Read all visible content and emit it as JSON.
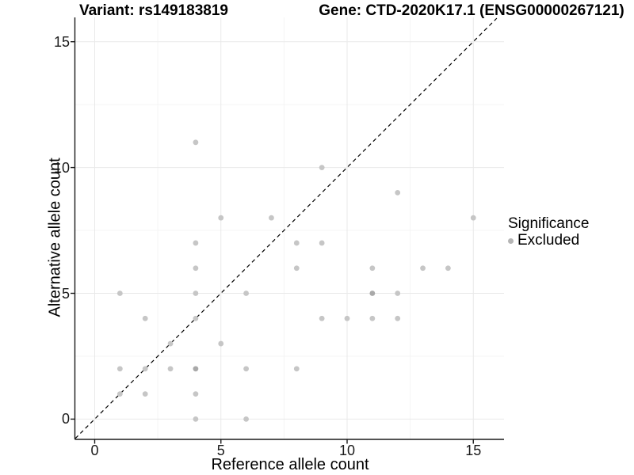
{
  "colors": {
    "point": "#c6c6c6",
    "point_overlap": "#a9a9a9",
    "legend_dot": "#b5b5b5",
    "gridline_major": "#e9e9e9",
    "gridline_minor": "#f4f4f4",
    "axis_line": "#1a1a1a",
    "identity_line": "#000000",
    "background": "#ffffff"
  },
  "chart_data": {
    "type": "scatter",
    "title_left": "Variant: rs149183819",
    "title_right": "Gene: CTD-2020K17.1 (ENSG00000267121)",
    "xlabel": "Reference allele count",
    "ylabel": "Alternative allele count",
    "xlim": [
      -0.8,
      16.2
    ],
    "ylim": [
      -0.85,
      15.95
    ],
    "x_ticks": [
      0,
      5,
      10,
      15
    ],
    "y_ticks": [
      0,
      5,
      10,
      15
    ],
    "x_tick_labels": [
      "0",
      "5",
      "10",
      "15"
    ],
    "y_tick_labels": [
      "0",
      "5",
      "10",
      "15"
    ],
    "minor_gridlines": [
      2.5,
      7.5,
      12.5
    ],
    "grid": "on",
    "identity_line": {
      "slope": 1,
      "intercept": 0,
      "style": "dashed"
    },
    "legend": {
      "title": "Significance",
      "position": "right",
      "items": [
        {
          "label": "Excluded",
          "marker": "dot"
        }
      ]
    },
    "series": [
      {
        "name": "Excluded",
        "points": [
          {
            "x": 4,
            "y": 11,
            "n": 1
          },
          {
            "x": 9,
            "y": 10,
            "n": 1
          },
          {
            "x": 12,
            "y": 9,
            "n": 1
          },
          {
            "x": 5,
            "y": 8,
            "n": 1
          },
          {
            "x": 7,
            "y": 8,
            "n": 1
          },
          {
            "x": 15,
            "y": 8,
            "n": 1
          },
          {
            "x": 4,
            "y": 7,
            "n": 1
          },
          {
            "x": 8,
            "y": 7,
            "n": 1
          },
          {
            "x": 9,
            "y": 7,
            "n": 1
          },
          {
            "x": 4,
            "y": 6,
            "n": 1
          },
          {
            "x": 8,
            "y": 6,
            "n": 1
          },
          {
            "x": 11,
            "y": 6,
            "n": 1
          },
          {
            "x": 13,
            "y": 6,
            "n": 1
          },
          {
            "x": 14,
            "y": 6,
            "n": 1
          },
          {
            "x": 1,
            "y": 5,
            "n": 1
          },
          {
            "x": 4,
            "y": 5,
            "n": 1
          },
          {
            "x": 6,
            "y": 5,
            "n": 1
          },
          {
            "x": 11,
            "y": 5,
            "n": 2
          },
          {
            "x": 12,
            "y": 5,
            "n": 1
          },
          {
            "x": 2,
            "y": 4,
            "n": 1
          },
          {
            "x": 4,
            "y": 4,
            "n": 1
          },
          {
            "x": 9,
            "y": 4,
            "n": 1
          },
          {
            "x": 10,
            "y": 4,
            "n": 1
          },
          {
            "x": 11,
            "y": 4,
            "n": 1
          },
          {
            "x": 12,
            "y": 4,
            "n": 1
          },
          {
            "x": 3,
            "y": 3,
            "n": 1
          },
          {
            "x": 5,
            "y": 3,
            "n": 1
          },
          {
            "x": 1,
            "y": 2,
            "n": 1
          },
          {
            "x": 2,
            "y": 2,
            "n": 1
          },
          {
            "x": 3,
            "y": 2,
            "n": 1
          },
          {
            "x": 4,
            "y": 2,
            "n": 2
          },
          {
            "x": 6,
            "y": 2,
            "n": 1
          },
          {
            "x": 8,
            "y": 2,
            "n": 1
          },
          {
            "x": 1,
            "y": 1,
            "n": 1
          },
          {
            "x": 2,
            "y": 1,
            "n": 1
          },
          {
            "x": 4,
            "y": 1,
            "n": 1
          },
          {
            "x": 4,
            "y": 0,
            "n": 1
          },
          {
            "x": 6,
            "y": 0,
            "n": 1
          }
        ]
      }
    ]
  }
}
